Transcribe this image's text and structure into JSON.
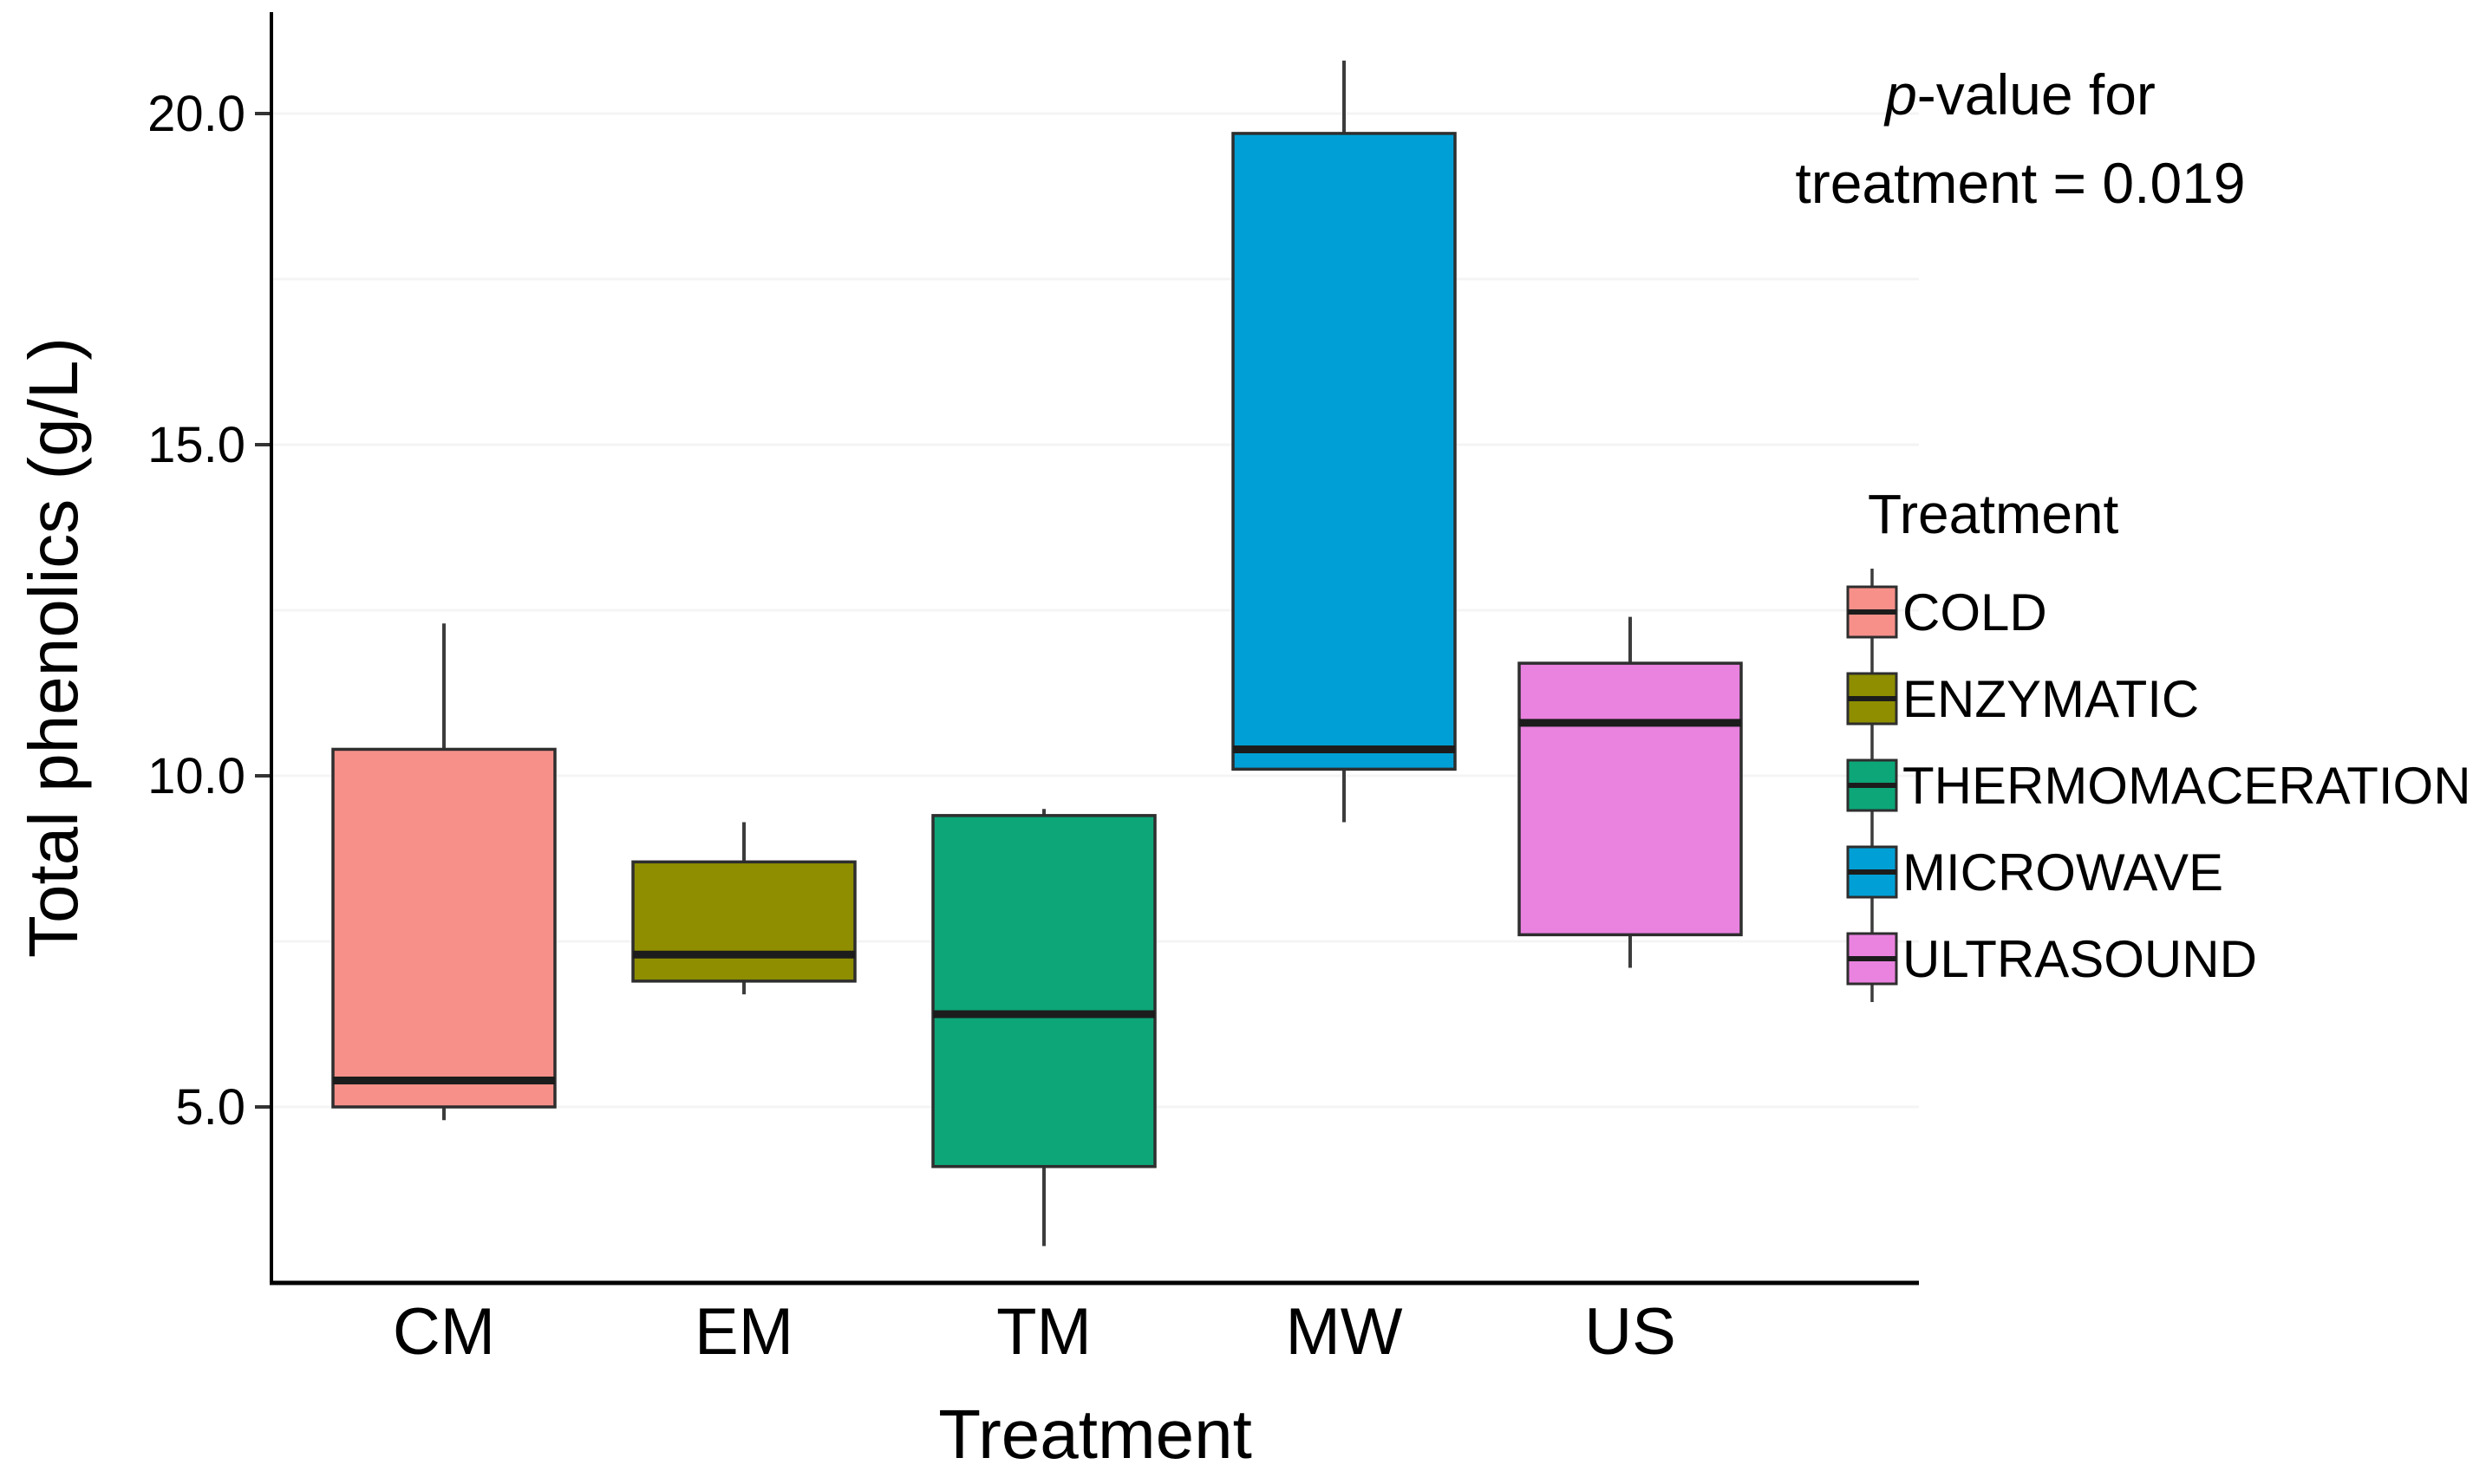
{
  "figure": {
    "background": "#ffffff"
  },
  "chart": {
    "y_title": "Total phenolics (g/L)",
    "x_title": "Treatment"
  },
  "annotation": {
    "p_italic": "p",
    "line1_rest": "-value for",
    "line2": "treatment = 0.019"
  },
  "legend": {
    "title": "Treatment",
    "position": "right",
    "items": [
      {
        "label": "COLD",
        "color": "#F8908A"
      },
      {
        "label": "ENZYMATIC",
        "color": "#8E8E00"
      },
      {
        "label": "THERMOMACERATION",
        "color": "#0CA678"
      },
      {
        "label": "MICROWAVE",
        "color": "#00A0D6"
      },
      {
        "label": "ULTRASOUND",
        "color": "#EA82E0"
      }
    ]
  },
  "chart_data": {
    "type": "boxplot",
    "title": "",
    "xlabel": "Treatment",
    "ylabel": "Total phenolics (g/L)",
    "categories": [
      "CM",
      "EM",
      "TM",
      "MW",
      "US"
    ],
    "ylim": [
      2.3,
      21.6
    ],
    "y_ticks": [
      {
        "value": 20,
        "label": "20.0"
      },
      {
        "value": 15,
        "label": "15.0"
      },
      {
        "value": 10,
        "label": "10.0"
      },
      {
        "value": 5,
        "label": "5.0"
      }
    ],
    "grid_values": [
      5,
      7.5,
      10,
      12.5,
      15,
      17.5,
      20
    ],
    "grid_on": true,
    "legend_position": "right",
    "annotation_text": "p-value for treatment = 0.019",
    "series": [
      {
        "code": "CM",
        "name": "COLD",
        "color": "#F8908A",
        "min": 4.8,
        "q1": 5.0,
        "median": 5.4,
        "q3": 10.4,
        "max": 12.3
      },
      {
        "code": "EM",
        "name": "ENZYMATIC",
        "color": "#8E8E00",
        "min": 6.7,
        "q1": 6.9,
        "median": 7.3,
        "q3": 8.7,
        "max": 9.3
      },
      {
        "code": "TM",
        "name": "THERMOMACERATION",
        "color": "#0CA678",
        "min": 2.9,
        "q1": 4.1,
        "median": 6.4,
        "q3": 9.4,
        "max": 9.5
      },
      {
        "code": "MW",
        "name": "MICROWAVE",
        "color": "#00A0D6",
        "min": 9.3,
        "q1": 10.1,
        "median": 10.4,
        "q3": 19.7,
        "max": 20.8
      },
      {
        "code": "US",
        "name": "ULTRASOUND",
        "color": "#EA82E0",
        "min": 7.1,
        "q1": 7.6,
        "median": 10.8,
        "q3": 11.7,
        "max": 12.4
      }
    ]
  }
}
